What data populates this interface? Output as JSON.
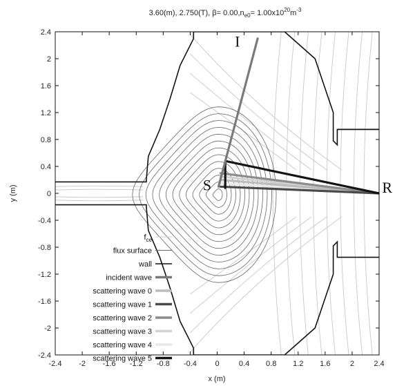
{
  "chart_data": {
    "type": "line",
    "title": {
      "prefix": "3.60(m), 2.750(T), ",
      "beta_sym": "β",
      "beta_val": "= 0.00,n",
      "ne_sub": "e0",
      "ne_val": "= 1.00x10",
      "exp": "20",
      "unit": "m",
      "unit_exp": "-3"
    },
    "xlabel": "x (m)",
    "ylabel": "y (m)",
    "xlim": [
      -2.4,
      2.4
    ],
    "ylim": [
      -2.4,
      2.4
    ],
    "xticks": [
      "-2.4",
      "-2",
      "-1.6",
      "-1.2",
      "-0.8",
      "-0.4",
      "0",
      "0.4",
      "0.8",
      "1.2",
      "1.6",
      "2",
      "2.4"
    ],
    "yticks": [
      "-2.4",
      "-2",
      "-1.6",
      "-1.2",
      "-0.8",
      "-0.4",
      "0",
      "0.4",
      "0.8",
      "1.2",
      "1.6",
      "2",
      "2.4"
    ],
    "annotations": [
      {
        "text": "I",
        "x": 0.3,
        "y": 2.25
      },
      {
        "text": "S",
        "x": -0.15,
        "y": 0.12
      },
      {
        "text": "R",
        "x": 2.52,
        "y": 0.08
      }
    ],
    "legend": {
      "placement": "bottom-left",
      "entries": [
        {
          "label": "f",
          "sub": "ce",
          "color": "#c8c8c8",
          "width": 1
        },
        {
          "label": "flux surface",
          "sub": "",
          "color": "#666666",
          "width": 1
        },
        {
          "label": "wall",
          "sub": "",
          "color": "#111111",
          "width": 1.6
        },
        {
          "label": "incident wave",
          "sub": "",
          "color": "#7a7a7a",
          "width": 3.5
        },
        {
          "label": "scattering wave 0",
          "sub": "",
          "color": "#bcbcbc",
          "width": 3.5
        },
        {
          "label": "scattering wave 1",
          "sub": "",
          "color": "#4a4a4a",
          "width": 3.5
        },
        {
          "label": "scattering wave 2",
          "sub": "",
          "color": "#8c8c8c",
          "width": 3.5
        },
        {
          "label": "scattering wave 3",
          "sub": "",
          "color": "#d2d2d2",
          "width": 3.5
        },
        {
          "label": "scattering wave 4",
          "sub": "",
          "color": "#e8e8e8",
          "width": 3.5
        },
        {
          "label": "scattering wave 5",
          "sub": "",
          "color": "#141414",
          "width": 3.5
        }
      ]
    },
    "series": [
      {
        "name": "incident wave",
        "x": [
          0.02,
          0.6
        ],
        "y": [
          0.1,
          2.3
        ]
      },
      {
        "name": "scattering wave 0",
        "x": [
          0.05,
          2.4
        ],
        "y": [
          0.2,
          0.0
        ]
      },
      {
        "name": "scattering wave 1",
        "x": [
          0.05,
          2.4
        ],
        "y": [
          0.1,
          0.0
        ]
      },
      {
        "name": "scattering wave 2",
        "x": [
          0.05,
          2.4
        ],
        "y": [
          0.3,
          0.0
        ]
      },
      {
        "name": "scattering wave 3",
        "x": [
          0.05,
          2.4
        ],
        "y": [
          0.25,
          0.0
        ]
      },
      {
        "name": "scattering wave 4",
        "x": [
          0.05,
          2.4
        ],
        "y": [
          0.15,
          0.0
        ]
      },
      {
        "name": "scattering wave 5",
        "x": [
          0.12,
          0.12,
          2.4
        ],
        "y": [
          0.08,
          0.48,
          0.0
        ]
      }
    ],
    "wall": {
      "upper": {
        "x": [
          -2.4,
          -1.05,
          -1.05,
          -1.02,
          -0.85,
          -0.7,
          -0.55,
          -0.35,
          -0.35,
          1.0,
          1.45,
          1.72,
          1.72,
          1.78,
          1.78,
          2.4
        ],
        "y": [
          0.17,
          0.17,
          0.2,
          0.55,
          0.95,
          1.4,
          1.9,
          2.3,
          2.4,
          2.4,
          2.0,
          1.2,
          0.78,
          0.72,
          0.95,
          0.95
        ]
      },
      "lower": {
        "x": [
          -2.4,
          -1.05,
          -1.05,
          -1.02,
          -0.85,
          -0.7,
          -0.55,
          -0.35,
          -0.35,
          1.0,
          1.45,
          1.72,
          1.72,
          1.78,
          1.78,
          2.4
        ],
        "y": [
          -0.17,
          -0.17,
          -0.2,
          -0.55,
          -0.95,
          -1.4,
          -1.9,
          -2.3,
          -2.4,
          -2.4,
          -2.0,
          -1.2,
          -0.78,
          -0.72,
          -0.95,
          -0.95
        ]
      }
    },
    "flux_surfaces": {
      "center": [
        0.02,
        -0.02
      ],
      "widths": [
        0.06,
        0.13,
        0.2,
        0.27,
        0.34,
        0.41,
        0.48,
        0.55,
        0.62,
        0.69,
        0.76,
        0.83,
        0.9
      ],
      "elongation": 1.45,
      "x_point_offset": 0.92
    },
    "fce_contours": {
      "vertical_x": [
        0.95,
        1.15,
        1.35,
        1.55,
        1.75,
        1.95,
        2.15,
        2.3
      ],
      "outer_radii": [
        1.3,
        1.55,
        1.8,
        2.05
      ]
    }
  }
}
